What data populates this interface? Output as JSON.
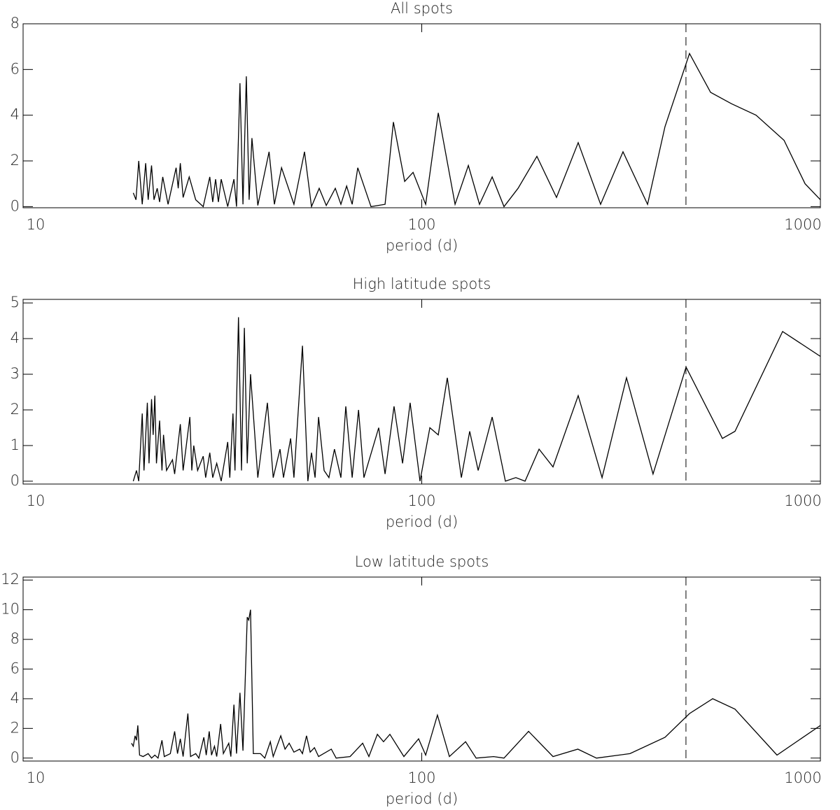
{
  "chart_data": [
    {
      "type": "line",
      "title": "All spots",
      "xlabel": "period (d)",
      "xlog": true,
      "xlim": [
        10,
        1000
      ],
      "xticks": [
        10,
        100,
        1000
      ],
      "ylim": [
        -0.05,
        8
      ],
      "yticks": [
        0,
        2,
        4,
        6,
        8
      ],
      "vline": 460,
      "color": "#000000",
      "x": [
        18.9,
        19.2,
        19.5,
        19.9,
        20.3,
        20.6,
        21.0,
        21.3,
        21.7,
        22.0,
        22.4,
        23.1,
        24.2,
        24.5,
        24.8,
        25.2,
        26.1,
        27.1,
        28.3,
        29.4,
        29.9,
        30.4,
        30.9,
        31.4,
        32.6,
        33.8,
        34.3,
        35.0,
        35.6,
        36.3,
        36.9,
        37.5,
        38.8,
        41.4,
        42.7,
        44.5,
        47.8,
        50.8,
        52.9,
        55.3,
        57.6,
        60.7,
        62.7,
        64.8,
        66.9,
        69.1,
        74.6,
        80.9,
        84.9,
        90.6,
        95.1,
        102.3,
        110.0,
        121.2,
        130.9,
        139.6,
        150.2,
        160.8,
        174.4,
        194.5,
        217.8,
        246.9,
        281.0,
        319.8,
        368.5,
        407.6,
        469.6,
        530.2,
        598.4,
        689.6,
        810.6,
        915.4,
        1000
      ],
      "values": [
        0.6,
        0.3,
        2.0,
        0.1,
        1.9,
        0.3,
        1.8,
        0.3,
        0.8,
        0.2,
        1.3,
        0.1,
        1.7,
        0.8,
        1.9,
        0.4,
        1.3,
        0.3,
        0.0,
        1.3,
        0.2,
        1.2,
        0.2,
        1.2,
        0.0,
        1.2,
        0.0,
        5.4,
        0.1,
        5.7,
        0.3,
        3.0,
        0.05,
        2.4,
        0.1,
        1.7,
        0.1,
        2.4,
        0.0,
        0.8,
        0.05,
        0.8,
        0.1,
        0.9,
        0.1,
        1.7,
        0.0,
        0.1,
        3.7,
        1.1,
        1.5,
        0.1,
        4.1,
        0.1,
        1.8,
        0.1,
        1.3,
        0.0,
        0.8,
        2.2,
        0.4,
        2.8,
        0.1,
        2.4,
        0.1,
        3.5,
        6.7,
        5.0,
        4.5,
        4.0,
        2.9,
        1.0,
        0.3
      ]
    },
    {
      "type": "line",
      "title": "High latitude spots",
      "xlabel": "period (d)",
      "xlog": true,
      "xlim": [
        10,
        1000
      ],
      "xticks": [
        10,
        100,
        1000
      ],
      "ylim": [
        -0.08,
        5.1
      ],
      "yticks": [
        0,
        1,
        2,
        3,
        4,
        5
      ],
      "vline": 460,
      "color": "#000000",
      "x": [
        18.9,
        19.25,
        19.5,
        19.9,
        20.1,
        20.5,
        20.7,
        21.0,
        21.2,
        21.4,
        21.6,
        22.0,
        22.3,
        22.5,
        22.9,
        23.7,
        24.0,
        24.8,
        25.2,
        25.6,
        26.2,
        26.5,
        26.8,
        27.4,
        28.3,
        28.7,
        29.4,
        29.9,
        30.6,
        31.4,
        32.6,
        33.0,
        33.6,
        34.0,
        34.7,
        35.3,
        35.9,
        36.5,
        37.2,
        38.8,
        41.0,
        42.4,
        44.1,
        45.0,
        46.9,
        47.8,
        50.2,
        51.8,
        52.9,
        54.0,
        55.1,
        56.9,
        58.5,
        60.4,
        62.7,
        64.5,
        66.9,
        69.4,
        71.6,
        78.0,
        80.9,
        85.2,
        89.5,
        93.5,
        99.0,
        104.8,
        110.0,
        115.9,
        125.7,
        131.9,
        138.5,
        150.2,
        162.1,
        172.2,
        181.6,
        196.9,
        213.4,
        246.9,
        283.3,
        326.3,
        380.4,
        460.3,
        567.8,
        610.7,
        804.0,
        1000
      ],
      "values": [
        0.0,
        0.3,
        0.0,
        1.9,
        0.3,
        2.2,
        0.5,
        2.3,
        1.3,
        2.4,
        0.5,
        1.7,
        0.3,
        1.3,
        0.3,
        0.6,
        0.2,
        1.6,
        0.3,
        0.9,
        1.8,
        0.3,
        1.0,
        0.3,
        0.7,
        0.1,
        0.8,
        0.1,
        0.5,
        0.0,
        1.1,
        0.1,
        1.9,
        0.3,
        4.6,
        0.3,
        4.3,
        0.5,
        3.0,
        0.1,
        2.2,
        0.1,
        0.9,
        0.1,
        1.2,
        0.1,
        3.8,
        0.0,
        0.8,
        0.1,
        1.8,
        0.3,
        0.1,
        0.9,
        0.1,
        2.1,
        0.1,
        2.0,
        0.1,
        1.5,
        0.2,
        2.1,
        0.5,
        2.2,
        0.0,
        1.5,
        1.3,
        2.9,
        0.1,
        1.4,
        0.3,
        1.8,
        0.0,
        0.1,
        0.0,
        0.9,
        0.4,
        2.4,
        0.1,
        2.9,
        0.2,
        3.2,
        1.2,
        1.4,
        4.2,
        3.5
      ]
    },
    {
      "type": "line",
      "title": "Low latitude spots",
      "xlabel": "period (d)",
      "xlog": true,
      "xlim": [
        10,
        1000
      ],
      "xticks": [
        10,
        100,
        1000
      ],
      "ylim": [
        -0.2,
        12.2
      ],
      "yticks": [
        0,
        2,
        4,
        6,
        8,
        10,
        12
      ],
      "vline": 460,
      "color": "#000000",
      "x": [
        18.7,
        18.9,
        19.1,
        19.25,
        19.4,
        19.6,
        20.0,
        20.6,
        21.0,
        21.4,
        21.8,
        22.3,
        22.6,
        23.4,
        24.0,
        24.4,
        24.8,
        25.2,
        25.9,
        26.3,
        27.1,
        27.6,
        28.4,
        28.8,
        29.3,
        29.7,
        30.2,
        30.6,
        31.3,
        31.8,
        32.8,
        33.2,
        33.8,
        34.3,
        35.0,
        35.6,
        36.5,
        36.8,
        37.2,
        37.8,
        39.4,
        40.4,
        41.7,
        42.4,
        44.3,
        45.4,
        46.5,
        47.8,
        49.4,
        50.2,
        51.4,
        52.5,
        53.8,
        55.1,
        59.3,
        61.0,
        66.1,
        71.1,
        73.7,
        77.4,
        80.2,
        83.2,
        90.2,
        98.2,
        102.3,
        109.5,
        117.3,
        128.8,
        136.9,
        151.4,
        160.8,
        185.3,
        213.4,
        246.4,
        274.3,
        333.0,
        407.6,
        469.6,
        536.7,
        610.7,
        778.2,
        1000
      ],
      "values": [
        1.0,
        0.8,
        1.5,
        1.2,
        2.2,
        0.2,
        0.1,
        0.3,
        0.0,
        0.2,
        0.0,
        1.2,
        0.1,
        0.3,
        1.8,
        0.3,
        1.3,
        0.1,
        3.0,
        0.1,
        0.3,
        0.0,
        1.4,
        0.2,
        1.8,
        0.2,
        0.8,
        0.1,
        2.3,
        0.3,
        1.0,
        0.1,
        3.6,
        0.3,
        4.4,
        0.5,
        9.5,
        9.3,
        10.0,
        0.3,
        0.3,
        0.0,
        1.1,
        0.1,
        1.5,
        0.6,
        1.0,
        0.4,
        0.6,
        0.3,
        1.5,
        0.4,
        0.7,
        0.1,
        0.6,
        0.0,
        0.1,
        1.0,
        0.1,
        1.6,
        1.1,
        1.6,
        0.1,
        1.3,
        0.2,
        2.9,
        0.1,
        1.1,
        0.0,
        0.1,
        0.0,
        1.8,
        0.1,
        0.6,
        0.0,
        0.3,
        1.4,
        3.0,
        4.0,
        3.3,
        0.2,
        2.2
      ]
    }
  ]
}
